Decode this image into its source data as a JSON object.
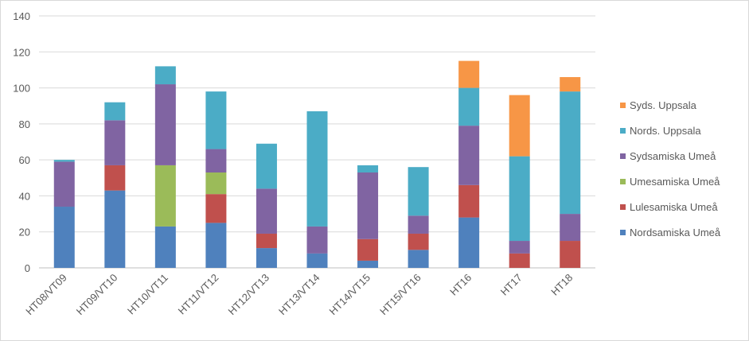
{
  "chart_data": {
    "type": "bar",
    "stacked": true,
    "title": "",
    "xlabel": "",
    "ylabel": "",
    "ylim": [
      0,
      140
    ],
    "yticks": [
      0,
      20,
      40,
      60,
      80,
      100,
      120,
      140
    ],
    "grid": true,
    "legend_position": "right",
    "categories": [
      "HT08/VT09",
      "HT09/VT10",
      "HT10/VT11",
      "HT11/VT12",
      "HT12/VT13",
      "HT13/VT14",
      "HT14/VT15",
      "HT15/VT16",
      "HT16",
      "HT17",
      "HT18"
    ],
    "series": [
      {
        "name": "Nordsamiska Umeå",
        "color": "#4f81bd",
        "values": [
          34,
          43,
          23,
          25,
          11,
          8,
          4,
          10,
          28,
          0,
          0
        ]
      },
      {
        "name": "Lulesamiska Umeå",
        "color": "#c0504d",
        "values": [
          0,
          14,
          0,
          16,
          8,
          0,
          12,
          9,
          18,
          8,
          15
        ]
      },
      {
        "name": "Umesamiska Umeå",
        "color": "#9bbb59",
        "values": [
          0,
          0,
          34,
          12,
          0,
          0,
          0,
          0,
          0,
          0,
          0
        ]
      },
      {
        "name": "Sydsamiska Umeå",
        "color": "#8064a2",
        "values": [
          25,
          25,
          45,
          13,
          25,
          15,
          37,
          10,
          33,
          7,
          15
        ]
      },
      {
        "name": "Nords. Uppsala",
        "color": "#4bacc6",
        "values": [
          1,
          10,
          10,
          32,
          25,
          64,
          4,
          27,
          21,
          47,
          68
        ]
      },
      {
        "name": "Syds. Uppsala",
        "color": "#f79646",
        "values": [
          0,
          0,
          0,
          0,
          0,
          0,
          0,
          0,
          15,
          34,
          8
        ]
      }
    ]
  }
}
